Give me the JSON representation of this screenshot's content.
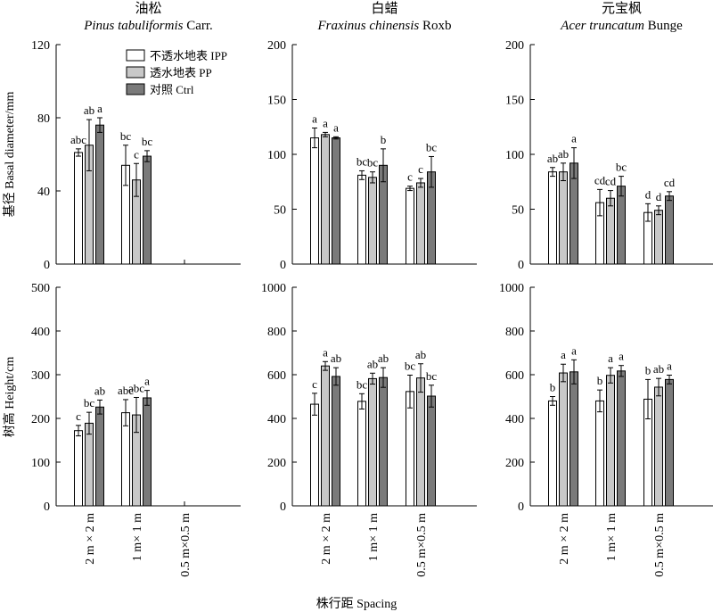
{
  "legend": [
    {
      "label": "不透水地表 IPP",
      "color": "#ffffff"
    },
    {
      "label": "透水地表  PP",
      "color": "#c8c8c8"
    },
    {
      "label": "对照 Ctrl",
      "color": "#7a7a7a"
    }
  ],
  "x_title": "株行距 Spacing",
  "y_titles": [
    "基径 Basal diameter/mm",
    "树高 Height/cm"
  ],
  "categories": [
    "2 m × 2 m",
    "1 m× 1 m",
    "0.5 m×0.5 m"
  ],
  "chart_data": [
    {
      "type": "bar",
      "title_cn": "油松",
      "title_sci": "Pinus tabuliformis",
      "title_auth": " Carr.",
      "ylim": [
        0,
        120
      ],
      "yticks": [
        0,
        40,
        80,
        120
      ],
      "series": [
        {
          "values": [
            61,
            54,
            null
          ],
          "errors": [
            2,
            11,
            null
          ],
          "labels": [
            "abc",
            "bc",
            ""
          ]
        },
        {
          "values": [
            65,
            46,
            null
          ],
          "errors": [
            14,
            9,
            null
          ],
          "labels": [
            "ab",
            "c",
            ""
          ]
        },
        {
          "values": [
            76,
            59,
            null
          ],
          "errors": [
            4,
            3,
            null
          ],
          "labels": [
            "a",
            "bc",
            ""
          ]
        }
      ]
    },
    {
      "type": "bar",
      "title_cn": "白蜡",
      "title_sci": "Fraxinus chinensis",
      "title_auth": " Roxb",
      "ylim": [
        0,
        200
      ],
      "yticks": [
        0,
        50,
        100,
        150,
        200
      ],
      "series": [
        {
          "values": [
            115,
            81,
            69
          ],
          "errors": [
            9,
            4,
            2
          ],
          "labels": [
            "a",
            "bc",
            "c"
          ]
        },
        {
          "values": [
            118,
            79,
            74
          ],
          "errors": [
            2,
            5,
            4
          ],
          "labels": [
            "a",
            "bc",
            "c"
          ]
        },
        {
          "values": [
            115,
            90,
            84
          ],
          "errors": [
            1,
            15,
            14
          ],
          "labels": [
            "a",
            "b",
            "bc"
          ]
        }
      ]
    },
    {
      "type": "bar",
      "title_cn": "元宝枫",
      "title_sci": "Acer truncatum",
      "title_auth": " Bunge",
      "ylim": [
        0,
        200
      ],
      "yticks": [
        0,
        50,
        100,
        150,
        200
      ],
      "series": [
        {
          "values": [
            84,
            56,
            47
          ],
          "errors": [
            4,
            12,
            8
          ],
          "labels": [
            "ab",
            "cd",
            "d"
          ]
        },
        {
          "values": [
            84,
            60,
            49
          ],
          "errors": [
            8,
            7,
            4
          ],
          "labels": [
            "ab",
            "cd",
            "d"
          ]
        },
        {
          "values": [
            92,
            71,
            62
          ],
          "errors": [
            14,
            9,
            4
          ],
          "labels": [
            "a",
            "bc",
            "cd"
          ]
        }
      ]
    },
    {
      "type": "bar",
      "ylim": [
        0,
        500
      ],
      "yticks": [
        0,
        100,
        200,
        300,
        400,
        500
      ],
      "series": [
        {
          "values": [
            172,
            213,
            null
          ],
          "errors": [
            12,
            30,
            null
          ],
          "labels": [
            "c",
            "abc",
            ""
          ]
        },
        {
          "values": [
            189,
            208,
            null
          ],
          "errors": [
            25,
            40,
            null
          ],
          "labels": [
            "bc",
            "abc",
            ""
          ]
        },
        {
          "values": [
            226,
            247,
            null
          ],
          "errors": [
            16,
            17,
            null
          ],
          "labels": [
            "ab",
            "a",
            ""
          ]
        }
      ]
    },
    {
      "type": "bar",
      "ylim": [
        0,
        1000
      ],
      "yticks": [
        0,
        200,
        400,
        600,
        800,
        1000
      ],
      "series": [
        {
          "values": [
            465,
            478,
            523
          ],
          "errors": [
            50,
            35,
            75
          ],
          "labels": [
            "c",
            "bc",
            "bc"
          ]
        },
        {
          "values": [
            640,
            582,
            585
          ],
          "errors": [
            20,
            25,
            65
          ],
          "labels": [
            "a",
            "ab",
            "ab"
          ]
        },
        {
          "values": [
            592,
            587,
            502
          ],
          "errors": [
            40,
            45,
            50
          ],
          "labels": [
            "ab",
            "ab",
            "bc"
          ]
        }
      ]
    },
    {
      "type": "bar",
      "ylim": [
        0,
        1000
      ],
      "yticks": [
        0,
        200,
        400,
        600,
        800,
        1000
      ],
      "series": [
        {
          "values": [
            480,
            480,
            488
          ],
          "errors": [
            20,
            50,
            90
          ],
          "labels": [
            "b",
            "b",
            "b"
          ]
        },
        {
          "values": [
            608,
            597,
            543
          ],
          "errors": [
            40,
            35,
            40
          ],
          "labels": [
            "a",
            "a",
            "ab"
          ]
        },
        {
          "values": [
            613,
            617,
            578
          ],
          "errors": [
            55,
            25,
            20
          ],
          "labels": [
            "a",
            "a",
            "a"
          ]
        }
      ]
    }
  ]
}
